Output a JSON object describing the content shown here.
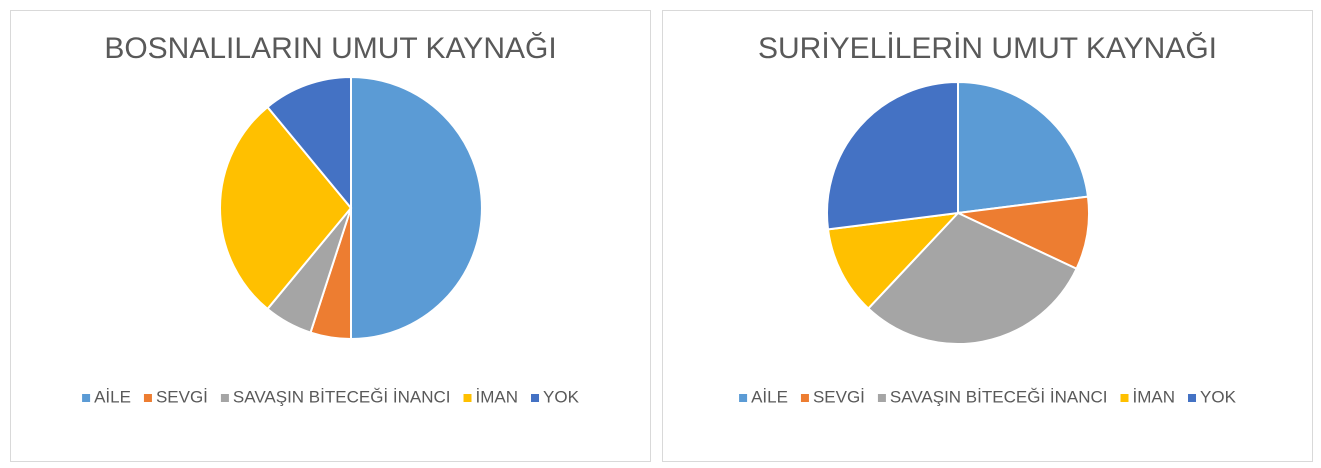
{
  "chart_data": [
    {
      "type": "pie",
      "title": "BOSNALILARIN UMUT KAYNAĞI",
      "categories": [
        "AİLE",
        "SEVGİ",
        "SAVAŞIN BİTECEĞİ İNANCI",
        "İMAN",
        "YOK"
      ],
      "values": [
        50,
        5,
        6,
        28,
        11
      ],
      "colors": [
        "#5b9bd5",
        "#ed7d31",
        "#a5a5a5",
        "#ffc000",
        "#4472c4"
      ],
      "legend": "bottom"
    },
    {
      "type": "pie",
      "title": "SURİYELİLERİN UMUT KAYNAĞI",
      "categories": [
        "AİLE",
        "SEVGİ",
        "SAVAŞIN BİTECEĞİ İNANCI",
        "İMAN",
        "YOK"
      ],
      "values": [
        23,
        9,
        30,
        11,
        27
      ],
      "colors": [
        "#5b9bd5",
        "#ed7d31",
        "#a5a5a5",
        "#ffc000",
        "#4472c4"
      ],
      "legend": "bottom"
    }
  ]
}
